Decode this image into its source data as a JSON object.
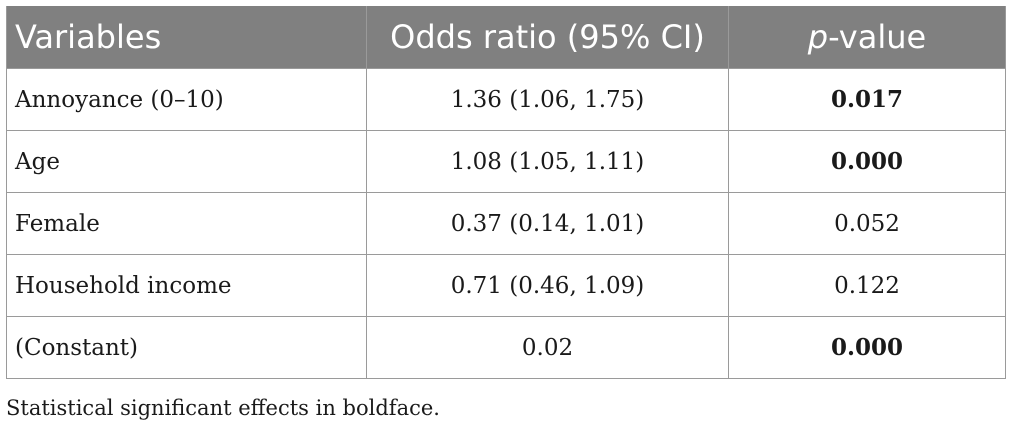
{
  "table": {
    "headers": {
      "variables": "Variables",
      "odds_ratio": "Odds ratio (95% CI)",
      "p_italic": "p",
      "p_rest": "-value"
    },
    "rows": [
      {
        "variable": "Annoyance (0–10)",
        "odds_ratio": "1.36 (1.06, 1.75)",
        "p_value": "0.017",
        "significant": true
      },
      {
        "variable": "Age",
        "odds_ratio": "1.08 (1.05, 1.11)",
        "p_value": "0.000",
        "significant": true
      },
      {
        "variable": "Female",
        "odds_ratio": "0.37 (0.14, 1.01)",
        "p_value": "0.052",
        "significant": false
      },
      {
        "variable": "Household income",
        "odds_ratio": "0.71 (0.46, 1.09)",
        "p_value": "0.122",
        "significant": false
      },
      {
        "variable": "(Constant)",
        "odds_ratio": "0.02",
        "p_value": "0.000",
        "significant": true
      }
    ]
  },
  "footnote": "Statistical significant effects in boldface.",
  "colors": {
    "header_background": "#808080",
    "header_text": "#ffffff",
    "border": "#9a9a9a",
    "body_text": "#1a1a1a"
  }
}
